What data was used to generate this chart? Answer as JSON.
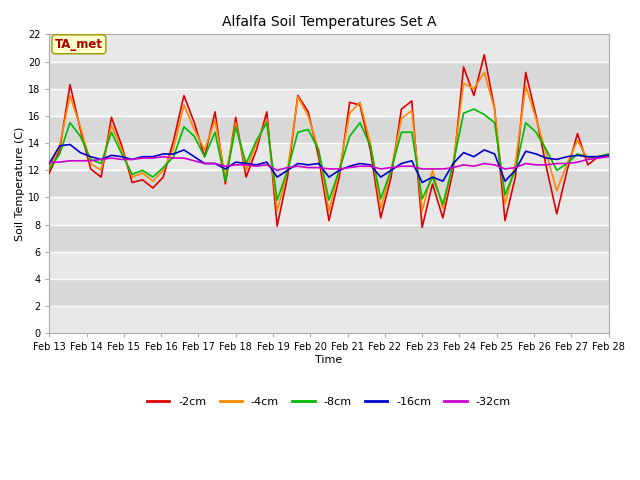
{
  "title": "Alfalfa Soil Temperatures Set A",
  "xlabel": "Time",
  "ylabel": "Soil Temperature (C)",
  "annotation": "TA_met",
  "ylim": [
    0,
    22
  ],
  "yticks": [
    0,
    2,
    4,
    6,
    8,
    10,
    12,
    14,
    16,
    18,
    20,
    22
  ],
  "x_labels": [
    "Feb 13",
    "Feb 14",
    "Feb 15",
    "Feb 16",
    "Feb 17",
    "Feb 18",
    "Feb 19",
    "Feb 20",
    "Feb 21",
    "Feb 22",
    "Feb 23",
    "Feb 24",
    "Feb 25",
    "Feb 26",
    "Feb 27",
    "Feb 28"
  ],
  "fig_bg": "#ffffff",
  "plot_bg_light": "#f0f0f0",
  "plot_bg_dark": "#e0e0e0",
  "series": {
    "-2cm": {
      "color": "#dd0000",
      "lw": 1.2
    },
    "-4cm": {
      "color": "#ff8800",
      "lw": 1.2
    },
    "-8cm": {
      "color": "#00bb00",
      "lw": 1.2
    },
    "-16cm": {
      "color": "#0000cc",
      "lw": 1.2
    },
    "-32cm": {
      "color": "#cc00cc",
      "lw": 1.2
    }
  },
  "data_2cm": [
    11.8,
    13.5,
    18.3,
    15.0,
    12.1,
    11.5,
    15.9,
    13.8,
    11.1,
    11.3,
    10.7,
    11.5,
    14.2,
    17.5,
    15.5,
    13.0,
    16.3,
    11.0,
    15.9,
    11.5,
    13.5,
    16.3,
    7.9,
    11.5,
    17.5,
    16.3,
    13.0,
    8.3,
    11.5,
    17.0,
    16.8,
    13.5,
    8.5,
    11.5,
    16.5,
    17.1,
    7.8,
    11.0,
    8.5,
    12.0,
    19.6,
    17.5,
    20.5,
    16.5,
    8.3,
    11.5,
    19.2,
    16.0,
    12.2,
    8.8,
    12.0,
    14.7,
    12.4,
    13.0,
    13.1
  ],
  "data_4cm": [
    12.2,
    13.8,
    17.5,
    15.2,
    12.5,
    12.0,
    15.3,
    13.5,
    11.5,
    11.8,
    11.2,
    12.0,
    13.6,
    16.8,
    15.0,
    13.5,
    15.7,
    11.5,
    15.5,
    12.0,
    14.0,
    15.7,
    9.0,
    12.0,
    17.4,
    16.0,
    13.5,
    9.0,
    12.0,
    16.2,
    17.0,
    14.0,
    9.2,
    12.0,
    15.8,
    16.4,
    9.0,
    12.0,
    9.2,
    12.5,
    18.4,
    18.0,
    19.2,
    16.5,
    9.5,
    12.5,
    18.2,
    15.8,
    13.2,
    10.5,
    12.5,
    14.2,
    12.8,
    13.0,
    13.2
  ],
  "data_8cm": [
    12.1,
    13.2,
    15.5,
    14.5,
    12.8,
    12.5,
    14.8,
    13.2,
    11.7,
    12.0,
    11.5,
    12.2,
    13.0,
    15.2,
    14.5,
    13.0,
    14.8,
    11.2,
    15.2,
    12.5,
    14.2,
    15.5,
    9.8,
    12.0,
    14.8,
    15.0,
    13.5,
    9.8,
    12.0,
    14.5,
    15.5,
    13.8,
    9.9,
    12.0,
    14.8,
    14.8,
    9.9,
    11.5,
    9.5,
    12.5,
    16.2,
    16.5,
    16.1,
    15.5,
    10.2,
    12.0,
    15.5,
    14.8,
    13.5,
    12.0,
    12.5,
    13.2,
    13.0,
    13.0,
    13.2
  ],
  "data_16cm": [
    12.5,
    13.8,
    13.9,
    13.3,
    13.0,
    12.8,
    13.1,
    13.0,
    12.8,
    13.0,
    13.0,
    13.2,
    13.2,
    13.5,
    13.0,
    12.5,
    12.5,
    12.1,
    12.6,
    12.5,
    12.4,
    12.6,
    11.5,
    12.0,
    12.5,
    12.4,
    12.5,
    11.5,
    12.0,
    12.3,
    12.5,
    12.4,
    11.5,
    12.0,
    12.5,
    12.7,
    11.1,
    11.5,
    11.2,
    12.5,
    13.3,
    13.0,
    13.5,
    13.2,
    11.2,
    12.0,
    13.4,
    13.2,
    12.9,
    12.8,
    13.0,
    13.1,
    13.0,
    13.0,
    13.1
  ],
  "data_32cm": [
    12.6,
    12.6,
    12.7,
    12.7,
    12.7,
    12.8,
    12.9,
    12.8,
    12.8,
    12.9,
    12.9,
    13.0,
    12.9,
    12.9,
    12.7,
    12.5,
    12.5,
    12.3,
    12.4,
    12.4,
    12.3,
    12.4,
    12.0,
    12.2,
    12.3,
    12.2,
    12.2,
    12.1,
    12.1,
    12.2,
    12.3,
    12.3,
    12.1,
    12.2,
    12.3,
    12.3,
    12.1,
    12.1,
    12.1,
    12.2,
    12.4,
    12.3,
    12.5,
    12.4,
    12.1,
    12.2,
    12.5,
    12.4,
    12.4,
    12.5,
    12.5,
    12.6,
    12.8,
    12.9,
    13.0
  ]
}
